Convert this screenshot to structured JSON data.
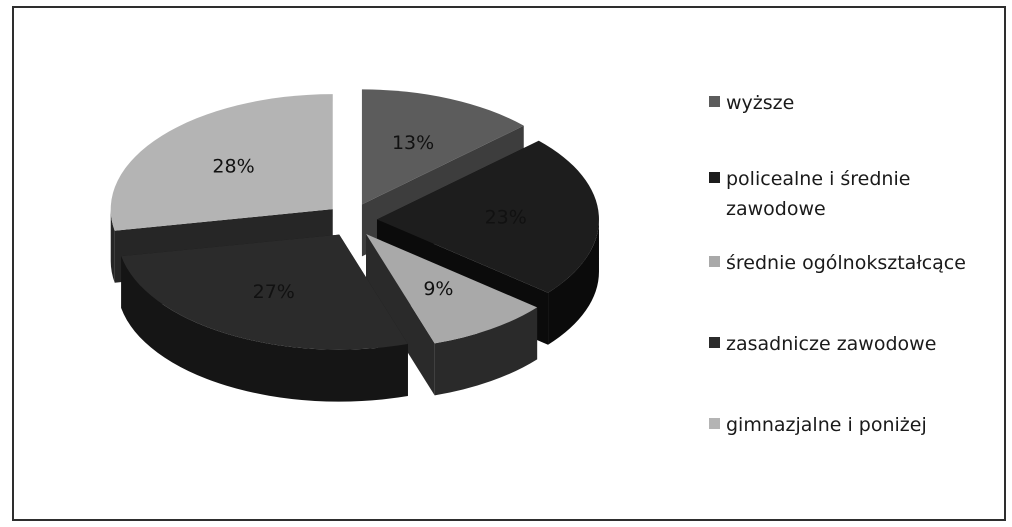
{
  "chart_data": {
    "type": "pie",
    "style": "3d-exploded",
    "legend_position": "right",
    "slices": [
      {
        "label": "wyższe",
        "value": 13,
        "value_label": "13%",
        "top_color": "#5c5c5c",
        "side_color": "#3d3d3d"
      },
      {
        "label": "policealne i średnie zawodowe",
        "value": 23,
        "value_label": "23%",
        "top_color": "#1d1d1d",
        "side_color": "#0b0b0b"
      },
      {
        "label": "średnie ogólnokształcące",
        "value": 9,
        "value_label": "9%",
        "top_color": "#a9a9a9",
        "side_color": "#2a2a2a"
      },
      {
        "label": "zasadnicze zawodowe",
        "value": 27,
        "value_label": "27%",
        "top_color": "#2b2b2b",
        "side_color": "#151515"
      },
      {
        "label": "gimnazjalne i poniżej",
        "value": 28,
        "value_label": "28%",
        "top_color": "#b4b4b4",
        "side_color": "#262626"
      }
    ]
  }
}
